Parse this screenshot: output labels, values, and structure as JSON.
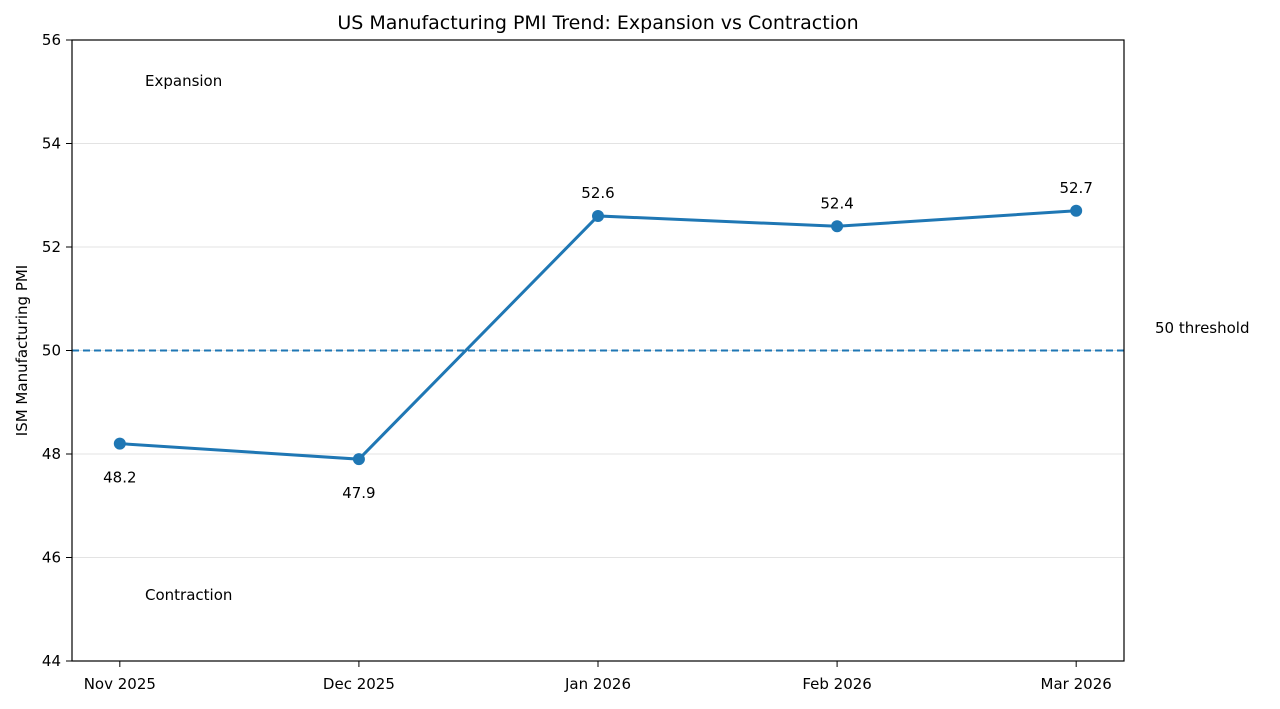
{
  "chart_data": {
    "type": "line",
    "title": "US Manufacturing PMI Trend: Expansion vs Contraction",
    "xlabel": "",
    "ylabel": "ISM Manufacturing PMI",
    "categories": [
      "Nov 2025",
      "Dec 2025",
      "Jan 2026",
      "Feb 2026",
      "Mar 2026"
    ],
    "series": [
      {
        "values": [
          48.2,
          47.9,
          52.6,
          52.4,
          52.7
        ],
        "color": "#1f77b4"
      }
    ],
    "data_labels": [
      "48.2",
      "47.9",
      "52.6",
      "52.4",
      "52.7"
    ],
    "ylim": [
      44,
      56
    ],
    "yticks": [
      44,
      46,
      48,
      50,
      52,
      54,
      56
    ],
    "grid": "horizontal",
    "reference_line": {
      "value": 50,
      "label": "50 threshold",
      "style": "dashed",
      "color": "#1f77b4"
    },
    "annotations": {
      "upper": "Expansion",
      "lower": "Contraction"
    }
  }
}
